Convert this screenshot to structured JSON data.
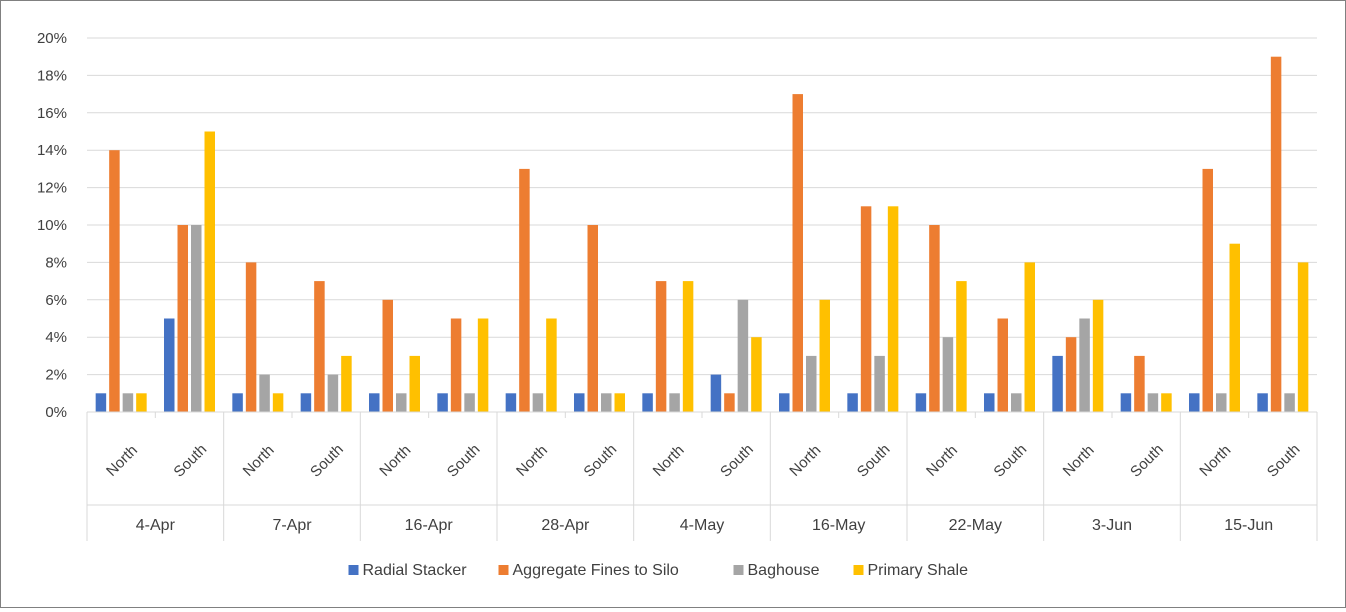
{
  "chart_data": {
    "type": "bar",
    "title": "",
    "xlabel": "",
    "ylabel": "",
    "ylim": [
      0,
      0.2
    ],
    "yticks": [
      "0%",
      "2%",
      "4%",
      "6%",
      "8%",
      "10%",
      "12%",
      "14%",
      "16%",
      "18%",
      "20%"
    ],
    "grid": true,
    "legend_position": "bottom",
    "groups": [
      "4-Apr",
      "7-Apr",
      "16-Apr",
      "28-Apr",
      "4-May",
      "16-May",
      "22-May",
      "3-Jun",
      "15-Jun"
    ],
    "categories": [
      "North",
      "South",
      "North",
      "South",
      "North",
      "South",
      "North",
      "South",
      "North",
      "South",
      "North",
      "South",
      "North",
      "South",
      "North",
      "South",
      "North",
      "South"
    ],
    "series": [
      {
        "name": "Radial Stacker",
        "color": "#4472C4",
        "values": [
          0.01,
          0.05,
          0.01,
          0.01,
          0.01,
          0.01,
          0.01,
          0.01,
          0.01,
          0.02,
          0.01,
          0.01,
          0.01,
          0.01,
          0.03,
          0.01,
          0.01,
          0.01
        ]
      },
      {
        "name": "Aggregate Fines to Silo",
        "color": "#ED7D31",
        "values": [
          0.14,
          0.1,
          0.08,
          0.07,
          0.06,
          0.05,
          0.13,
          0.1,
          0.07,
          0.01,
          0.17,
          0.11,
          0.1,
          0.05,
          0.04,
          0.03,
          0.13,
          0.19
        ]
      },
      {
        "name": "Baghouse",
        "color": "#A5A5A5",
        "values": [
          0.01,
          0.1,
          0.02,
          0.02,
          0.01,
          0.01,
          0.01,
          0.01,
          0.01,
          0.06,
          0.03,
          0.03,
          0.04,
          0.01,
          0.05,
          0.01,
          0.01,
          0.01
        ]
      },
      {
        "name": "Primary Shale",
        "color": "#FFC000",
        "values": [
          0.01,
          0.15,
          0.01,
          0.03,
          0.03,
          0.05,
          0.05,
          0.01,
          0.07,
          0.04,
          0.06,
          0.11,
          0.07,
          0.08,
          0.06,
          0.01,
          0.09,
          0.08
        ]
      }
    ]
  }
}
